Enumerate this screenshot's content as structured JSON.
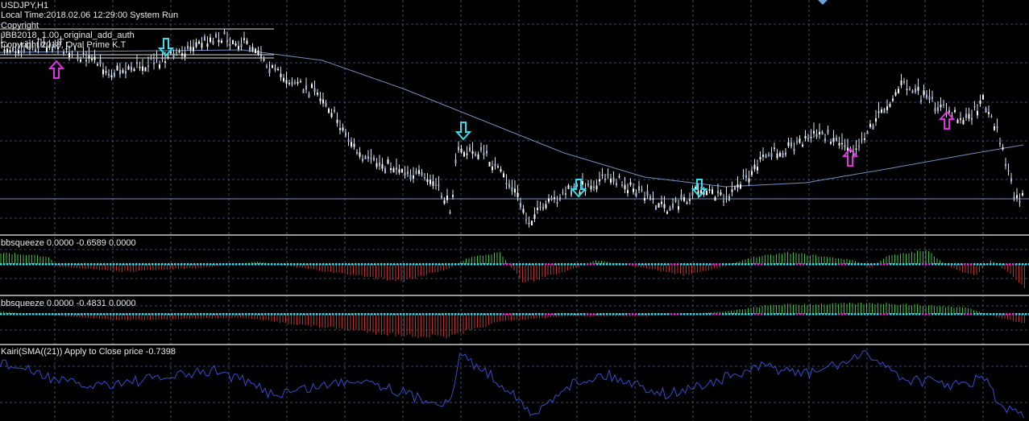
{
  "main_window": {
    "symbol": "USDJPY,H1",
    "lines": [
      "Local Time:2018.02.06 12:29:00 System Run",
      "Copyright",
      "JBB2018_1.00_original_add_auth",
      "Copyright 2018, Oval Prime K.T"
    ]
  },
  "indicators": [
    {
      "label": "bbsqueeze 0.0000 -0.6589 0.0000"
    },
    {
      "label": "bbsqueeze 0.0000 -0.4831 0.0000"
    },
    {
      "label": "Kairi(SMA((21)) Apply to Close price -0.7398"
    }
  ]
}
